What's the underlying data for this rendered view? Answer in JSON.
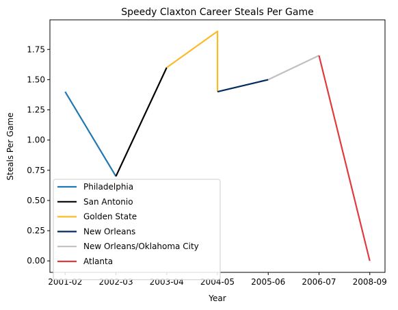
{
  "chart_data": {
    "type": "line",
    "title": "Speedy Claxton Career Steals Per Game",
    "xlabel": "Year",
    "ylabel": "Steals Per Game",
    "categories": [
      "2001-02",
      "2002-03",
      "2003-04",
      "2004-05",
      "2005-06",
      "2006-07",
      "2008-09"
    ],
    "ylim": [
      -0.095,
      1.995
    ],
    "yticks": [
      "0.00",
      "0.25",
      "0.50",
      "0.75",
      "1.00",
      "1.25",
      "1.50",
      "1.75"
    ],
    "grid": false,
    "legend_position": "lower-left",
    "series": [
      {
        "name": "Philadelphia",
        "color": "#1f77b4",
        "points": [
          [
            "2001-02",
            1.4
          ],
          [
            "2002-03",
            0.7
          ]
        ]
      },
      {
        "name": "San Antonio",
        "color": "#000000",
        "points": [
          [
            "2002-03",
            0.7
          ],
          [
            "2003-04",
            1.6
          ]
        ]
      },
      {
        "name": "Golden State",
        "color": "#fdb927",
        "points": [
          [
            "2003-04",
            1.6
          ],
          [
            "2004-05",
            1.9
          ],
          [
            "2004-05",
            1.4
          ]
        ]
      },
      {
        "name": "New Orleans",
        "color": "#002b5c",
        "points": [
          [
            "2004-05",
            1.4
          ],
          [
            "2005-06",
            1.5
          ]
        ]
      },
      {
        "name": "New Orleans/Oklahoma City",
        "color": "#c0c0c0",
        "points": [
          [
            "2005-06",
            1.5
          ],
          [
            "2006-07",
            1.7
          ]
        ]
      },
      {
        "name": "Atlanta",
        "color": "#e03a3e",
        "points": [
          [
            "2006-07",
            1.7
          ],
          [
            "2008-09",
            0.0
          ]
        ]
      }
    ]
  }
}
